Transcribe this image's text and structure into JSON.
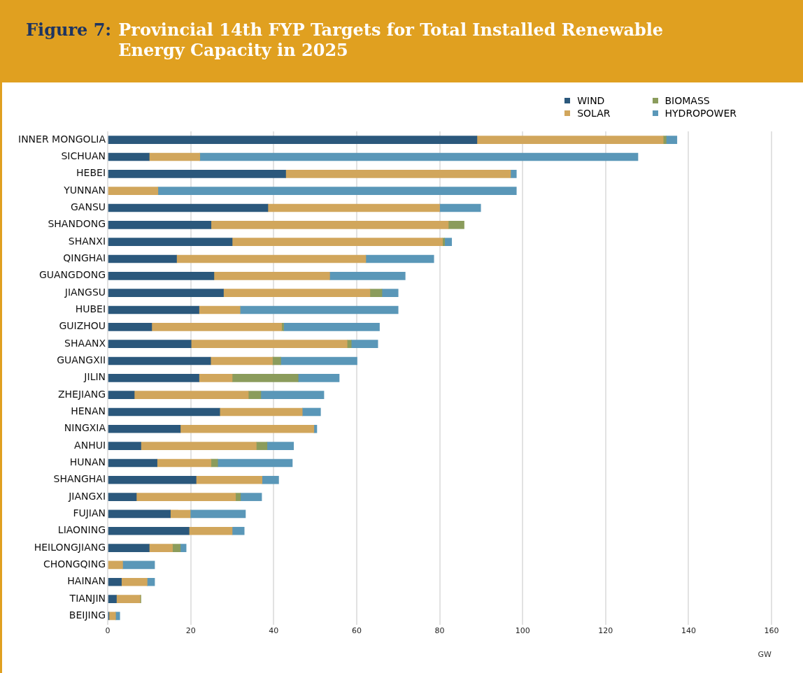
{
  "chart_data": {
    "type": "bar",
    "orientation": "horizontal",
    "stacked": true,
    "title": "Figure 7: Provincial 14th FYP Targets for Total Installed Renewable Energy Capacity in 2025",
    "xlabel": "GW",
    "categories": [
      "INNER MONGOLIA",
      "SICHUAN",
      "HEBEI",
      "YUNNAN",
      "GANSU",
      "SHANDONG",
      "SHANXI",
      "QINGHAI",
      "GUANGDONG",
      "JIANGSU",
      "HUBEI",
      "GUIZHOU",
      "SHAANX",
      "GUANGXII",
      "JILIN",
      "ZHEJIANG",
      "HENAN",
      "NINGXIA",
      "ANHUI",
      "HUNAN",
      "SHANGHAI",
      "JIANGXI",
      "FUJIAN",
      "LIAONING",
      "HEILONGJIANG",
      "CHONGQING",
      "HAINAN",
      "TIANJIN",
      "BEIJING"
    ],
    "series": [
      {
        "name": "WIND",
        "color": "#2b587c",
        "values": [
          89.0,
          10.0,
          42.9,
          null,
          38.6,
          24.9,
          30.0,
          16.6,
          25.6,
          27.9,
          22.0,
          10.6,
          20.1,
          24.8,
          22.0,
          6.4,
          27.0,
          17.5,
          8.0,
          11.9,
          21.3,
          6.9,
          15.1,
          19.6,
          10.0,
          null,
          3.3,
          2.1,
          0.3
        ]
      },
      {
        "name": "SOLAR",
        "color": "#d1a65c",
        "values": [
          44.9,
          12.2,
          54.2,
          12.1,
          41.4,
          57.2,
          50.7,
          45.6,
          27.9,
          35.3,
          9.9,
          31.3,
          37.6,
          14.9,
          8.0,
          27.5,
          19.9,
          32.2,
          27.8,
          13.0,
          15.9,
          23.9,
          4.8,
          10.4,
          5.6,
          3.6,
          6.2,
          5.7,
          1.6
        ]
      },
      {
        "name": "BIOMASS",
        "color": "#8b9c5c",
        "values": [
          0.7,
          null,
          null,
          null,
          null,
          3.8,
          0.5,
          null,
          null,
          2.9,
          null,
          0.5,
          1.0,
          2.0,
          15.9,
          3.0,
          null,
          null,
          2.6,
          1.6,
          null,
          1.2,
          null,
          null,
          1.9,
          null,
          null,
          0.2,
          null
        ]
      },
      {
        "name": "HYDROPOWER",
        "color": "#5a97b8",
        "values": [
          2.6,
          105.6,
          1.4,
          86.4,
          9.9,
          null,
          1.7,
          16.4,
          18.2,
          3.9,
          38.1,
          23.1,
          6.4,
          18.4,
          9.9,
          15.2,
          4.4,
          0.7,
          6.4,
          18.0,
          4.0,
          5.1,
          13.3,
          2.9,
          1.4,
          7.7,
          1.8,
          null,
          1.0
        ]
      }
    ],
    "xlim": [
      0,
      160
    ],
    "xticks": [
      0,
      20,
      40,
      60,
      80,
      100,
      120,
      140,
      160
    ],
    "grid": "x",
    "legend": "top right"
  }
}
